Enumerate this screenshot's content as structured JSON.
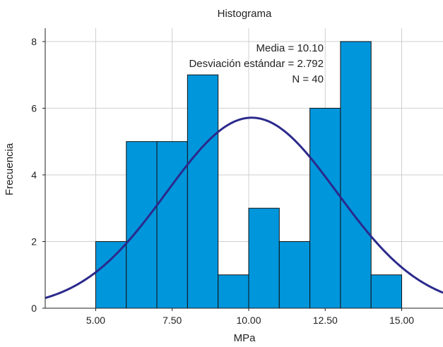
{
  "chart_data": {
    "type": "bar",
    "title": "Histograma",
    "xlabel": "MPa",
    "ylabel": "Frecuencia",
    "xlim": [
      3.35,
      16.35
    ],
    "ylim": [
      0,
      8.4
    ],
    "x_ticks": [
      5.0,
      7.5,
      10.0,
      12.5,
      15.0
    ],
    "x_tick_labels": [
      "5.00",
      "7.50",
      "10.00",
      "12.50",
      "15.00"
    ],
    "y_ticks": [
      0,
      2,
      4,
      6,
      8
    ],
    "y_tick_labels": [
      "0",
      "2",
      "4",
      "6",
      "8"
    ],
    "grid": true,
    "bins": [
      {
        "start": 5.0,
        "end": 6.0,
        "count": 2
      },
      {
        "start": 6.0,
        "end": 7.0,
        "count": 5
      },
      {
        "start": 7.0,
        "end": 8.0,
        "count": 5
      },
      {
        "start": 8.0,
        "end": 9.0,
        "count": 7
      },
      {
        "start": 9.0,
        "end": 10.0,
        "count": 1
      },
      {
        "start": 10.0,
        "end": 11.0,
        "count": 3
      },
      {
        "start": 11.0,
        "end": 12.0,
        "count": 2
      },
      {
        "start": 12.0,
        "end": 13.0,
        "count": 6
      },
      {
        "start": 13.0,
        "end": 14.0,
        "count": 8
      },
      {
        "start": 14.0,
        "end": 15.0,
        "count": 1
      }
    ],
    "normal_curve": {
      "mean": 10.1,
      "sd": 2.792,
      "n": 40,
      "bin_width": 1.0
    },
    "stats": {
      "mean_label": "Media = 10.10",
      "sd_label": "Desviación estándar = 2.792",
      "n_label": "N = 40"
    },
    "colors": {
      "bar_fill": "#0096dc",
      "curve": "#2b2a8c"
    }
  }
}
